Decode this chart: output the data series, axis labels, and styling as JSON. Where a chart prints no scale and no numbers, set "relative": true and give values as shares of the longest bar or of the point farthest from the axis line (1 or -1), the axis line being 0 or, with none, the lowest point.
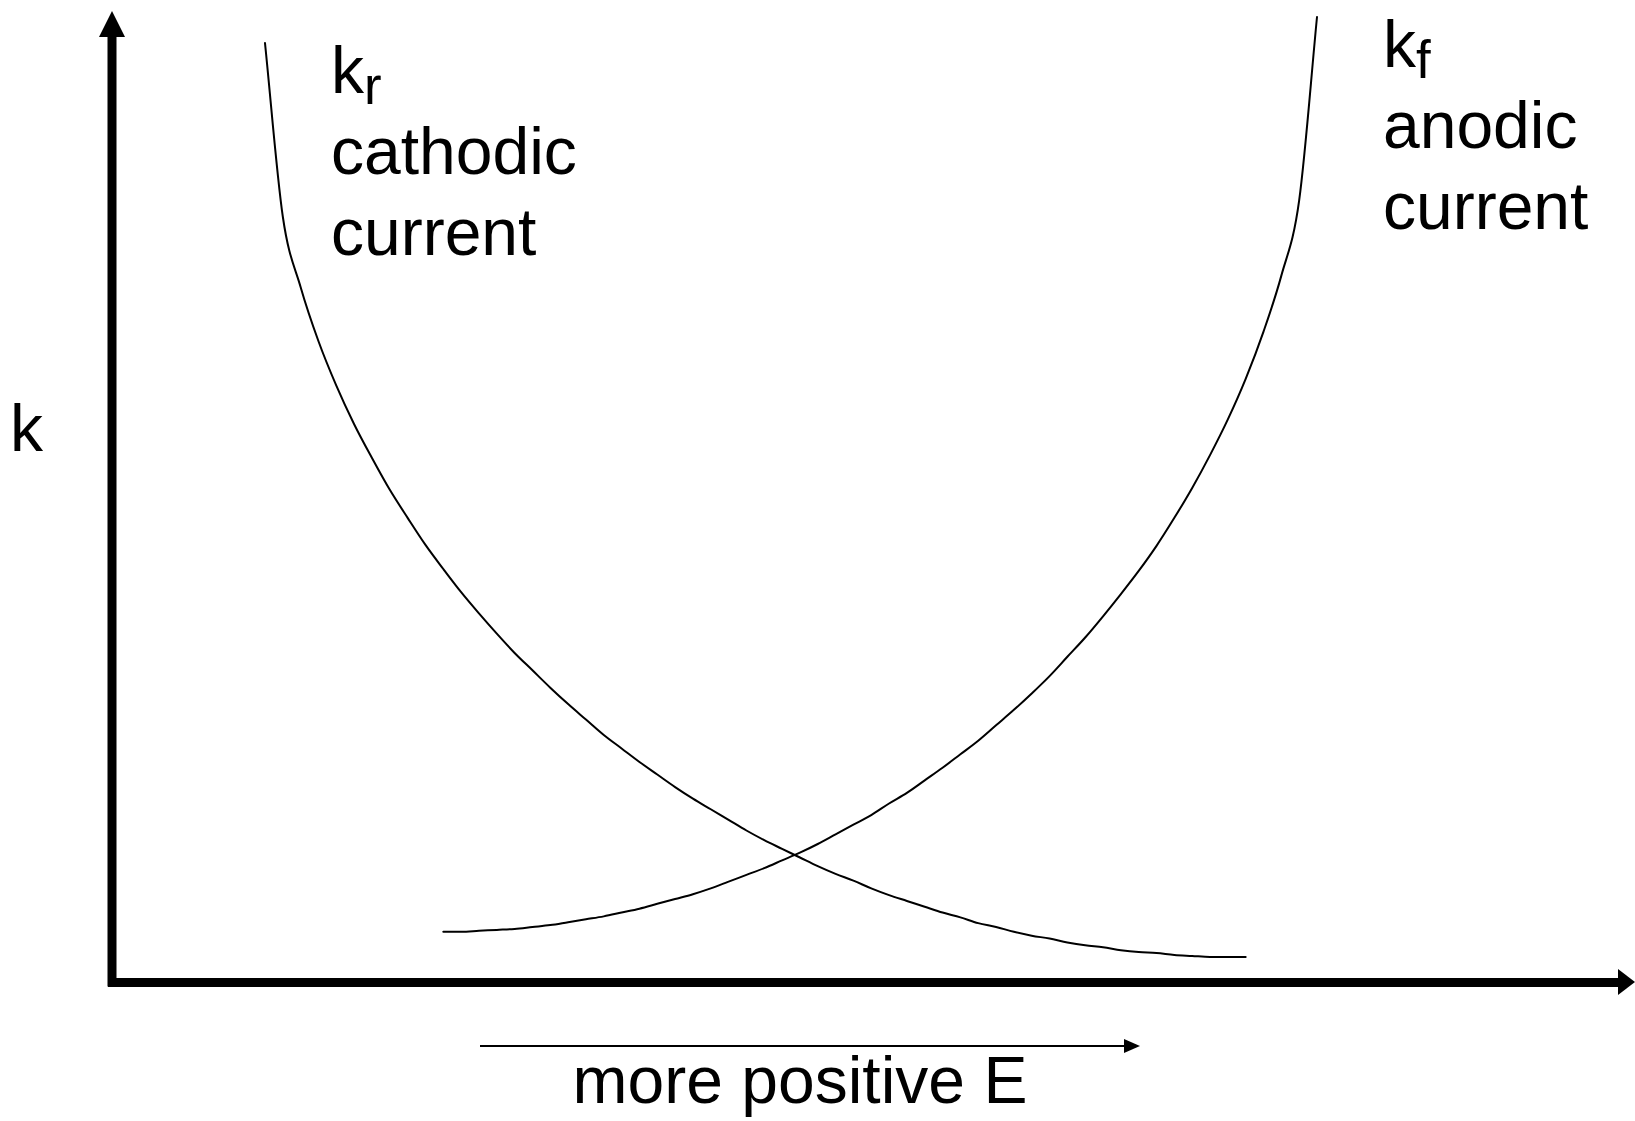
{
  "chart_data": {
    "type": "line",
    "relative": true,
    "xlabel": "more positive E",
    "ylabel": "k",
    "marker": "none",
    "line_style": "solid",
    "categories": [
      null,
      null,
      null,
      null,
      null,
      null,
      null,
      null,
      null,
      null,
      null,
      null,
      null,
      null,
      null,
      null,
      null,
      null,
      null,
      null,
      null,
      null,
      null,
      null,
      null,
      null,
      null,
      null,
      null,
      null,
      null,
      null,
      null,
      null,
      null,
      null,
      null,
      null,
      null,
      null,
      null,
      null,
      null,
      null,
      null,
      null,
      null,
      null,
      null,
      null,
      null,
      null,
      null,
      null,
      null,
      null,
      null,
      null,
      null,
      null
    ],
    "series": [
      {
        "name": "k$_{r}$ cathodic current",
        "color": "#000000",
        "values": [
          0.973,
          0.793,
          0.72,
          0.664,
          0.618,
          0.578,
          0.543,
          0.51,
          0.481,
          0.453,
          0.428,
          0.404,
          0.382,
          0.361,
          0.341,
          0.323,
          0.305,
          0.288,
          0.272,
          0.256,
          0.242,
          0.228,
          0.215,
          0.202,
          0.19,
          0.179,
          0.168,
          0.157,
          0.147,
          0.138,
          0.129,
          0.12,
          0.112,
          0.105,
          0.097,
          0.09,
          0.084,
          0.078,
          0.072,
          0.067,
          0.061,
          0.057,
          0.052,
          0.048,
          0.045,
          0.041,
          0.038,
          0.036,
          0.033,
          0.031,
          0.03,
          0.028,
          0.027,
          0.026,
          0.026,
          0.026,
          null,
          null,
          null,
          null
        ]
      },
      {
        "name": "k$_{f}$ anodic current",
        "color": "#000000",
        "values": [
          null,
          null,
          null,
          null,
          null,
          null,
          null,
          null,
          null,
          null,
          0.052,
          0.052,
          0.053,
          0.054,
          0.055,
          0.057,
          0.059,
          0.062,
          0.065,
          0.068,
          0.072,
          0.076,
          0.081,
          0.086,
          0.091,
          0.097,
          0.104,
          0.111,
          0.118,
          0.126,
          0.134,
          0.143,
          0.153,
          0.163,
          0.173,
          0.185,
          0.196,
          0.209,
          0.222,
          0.236,
          0.25,
          0.266,
          0.282,
          0.299,
          0.317,
          0.337,
          0.357,
          0.379,
          0.402,
          0.426,
          0.452,
          0.481,
          0.512,
          0.546,
          0.583,
          0.625,
          0.674,
          0.732,
          0.81,
          1
        ]
      }
    ]
  }
}
